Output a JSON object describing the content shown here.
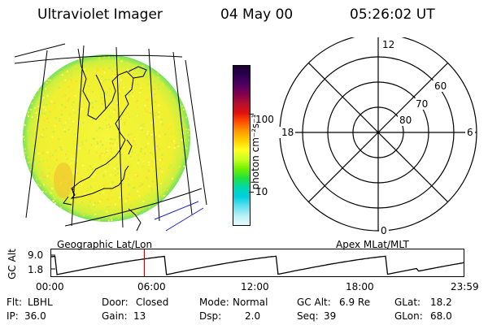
{
  "header": {
    "instrument": "Ultraviolet Imager",
    "date": "04 May 00",
    "time": "05:26:02 UT"
  },
  "colorbar": {
    "label": "photon cm⁻²s⁻¹",
    "ticks": [
      "100",
      "10"
    ],
    "scale": "log",
    "colors": [
      "#1a0033",
      "#2a0050",
      "#500060",
      "#800050",
      "#b01030",
      "#e01010",
      "#ff5000",
      "#ff9a00",
      "#ffd000",
      "#ffff20",
      "#c8ff20",
      "#70f000",
      "#20e040",
      "#00d8b0",
      "#00d0e0",
      "#60e0f0",
      "#b8f0f8",
      "#e8fafc"
    ]
  },
  "map": {
    "label": "Geographic Lat/Lon",
    "fill_color": "#f2f232"
  },
  "polar": {
    "label": "Apex MLat/MLT",
    "mlt_labels": {
      "top": "12",
      "left": "18",
      "right": "6",
      "bottom": "0"
    },
    "lat_labels": [
      "80",
      "70",
      "60"
    ]
  },
  "altitude_plot": {
    "ylabel": "GC Alt",
    "yticks": [
      "9.0",
      "1.8"
    ],
    "xticks": [
      "00:00",
      "06:00",
      "12:00",
      "18:00",
      "23:59"
    ],
    "marker_time": "05:26",
    "marker_color": "#cc0000"
  },
  "info": {
    "row1": [
      {
        "key": "Flt:",
        "value": "LBHL"
      },
      {
        "key": "Door:",
        "value": "Closed"
      },
      {
        "key": "Mode:",
        "value": "Normal"
      },
      {
        "key": "GC Alt:",
        "value": "6.9 Re"
      },
      {
        "key": "GLat:",
        "value": "18.2"
      }
    ],
    "row2": [
      {
        "key": "IP:",
        "value": "36.0"
      },
      {
        "key": "Gain:",
        "value": "13"
      },
      {
        "key": "Dsp:",
        "value": "2.0"
      },
      {
        "key": "Seq:",
        "value": "39"
      },
      {
        "key": "GLon:",
        "value": "68.0"
      }
    ]
  }
}
